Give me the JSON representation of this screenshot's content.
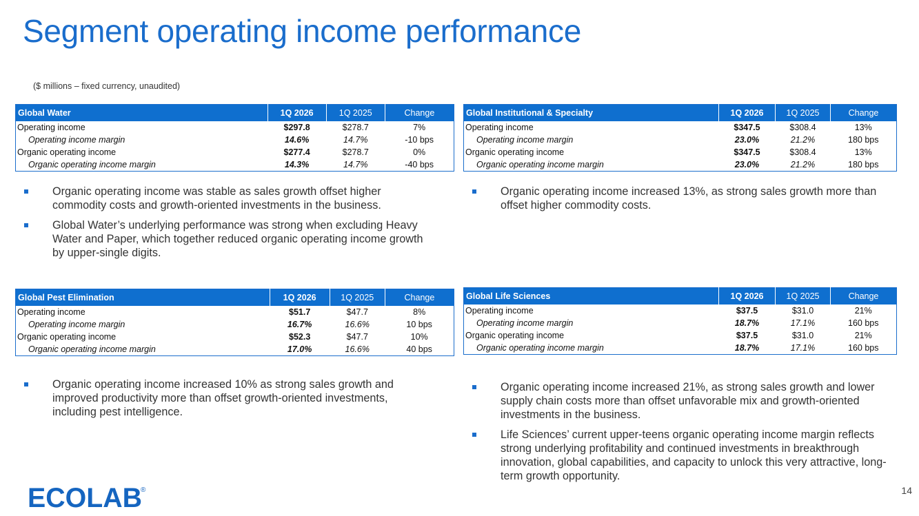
{
  "title": "Segment operating income performance",
  "subtitle": "($ millions – fixed currency, unaudited)",
  "accent_color": "#1a6dcc",
  "header_color": "#0f6fcf",
  "tables": [
    {
      "segment": "Global Water",
      "col_current": "1Q 2026",
      "col_prior": "1Q 2025",
      "col_change": "Change",
      "rows": [
        {
          "label": "Operating income",
          "current": "$297.8",
          "prior": "$278.7",
          "change": "7%"
        },
        {
          "label": "Operating income margin",
          "current": "14.6%",
          "prior": "14.7%",
          "change": "-10 bps"
        },
        {
          "label": "Organic operating income",
          "current": "$277.4",
          "prior": "$278.7",
          "change": "0%"
        },
        {
          "label": "Organic operating income margin",
          "current": "14.3%",
          "prior": "14.7%",
          "change": "-40 bps"
        }
      ]
    },
    {
      "segment": "Global Institutional & Specialty",
      "col_current": "1Q 2026",
      "col_prior": "1Q 2025",
      "col_change": "Change",
      "rows": [
        {
          "label": "Operating income",
          "current": "$347.5",
          "prior": "$308.4",
          "change": "13%"
        },
        {
          "label": "Operating income margin",
          "current": "23.0%",
          "prior": "21.2%",
          "change": "180 bps"
        },
        {
          "label": "Organic operating income",
          "current": "$347.5",
          "prior": "$308.4",
          "change": "13%"
        },
        {
          "label": "Organic operating income margin",
          "current": "23.0%",
          "prior": "21.2%",
          "change": "180 bps"
        }
      ]
    },
    {
      "segment": "Global Pest Elimination",
      "col_current": "1Q 2026",
      "col_prior": "1Q 2025",
      "col_change": "Change",
      "rows": [
        {
          "label": "Operating income",
          "current": "$51.7",
          "prior": "$47.7",
          "change": "8%"
        },
        {
          "label": "Operating income margin",
          "current": "16.7%",
          "prior": "16.6%",
          "change": "10 bps"
        },
        {
          "label": "Organic operating income",
          "current": "$52.3",
          "prior": "$47.7",
          "change": "10%"
        },
        {
          "label": "Organic operating income margin",
          "current": "17.0%",
          "prior": "16.6%",
          "change": "40 bps"
        }
      ]
    },
    {
      "segment": "Global Life Sciences",
      "col_current": "1Q 2026",
      "col_prior": "1Q 2025",
      "col_change": "Change",
      "rows": [
        {
          "label": "Operating income",
          "current": "$37.5",
          "prior": "$31.0",
          "change": "21%"
        },
        {
          "label": "Operating income margin",
          "current": "18.7%",
          "prior": "17.1%",
          "change": "160 bps"
        },
        {
          "label": "Organic operating income",
          "current": "$37.5",
          "prior": "$31.0",
          "change": "21%"
        },
        {
          "label": "Organic operating income margin",
          "current": "18.7%",
          "prior": "17.1%",
          "change": "160 bps"
        }
      ]
    }
  ],
  "bullets": {
    "water": [
      "Organic operating income was stable as sales growth offset higher commodity costs and growth-oriented investments in the business.",
      "Global Water’s underlying performance was strong when excluding Heavy Water and Paper, which together reduced organic operating income growth by upper-single digits."
    ],
    "institutional": [
      "Organic operating income increased 13%, as strong sales growth more than offset higher commodity costs."
    ],
    "pest": [
      "Organic operating income increased 10% as strong sales growth and improved productivity more than offset growth-oriented investments, including pest intelligence."
    ],
    "life_sciences": [
      "Organic operating income increased 21%, as strong sales growth and lower supply chain costs more than offset unfavorable mix and growth-oriented investments in the business.",
      "Life Sciences’ current upper-teens organic operating income margin reflects strong underlying profitability and continued investments in breakthrough innovation, global capabilities, and capacity to unlock this very attractive, long-term growth opportunity."
    ]
  },
  "logo": {
    "text": "ECOLAB",
    "mark": "®",
    "color": "#1565c0"
  },
  "page_number": "14"
}
